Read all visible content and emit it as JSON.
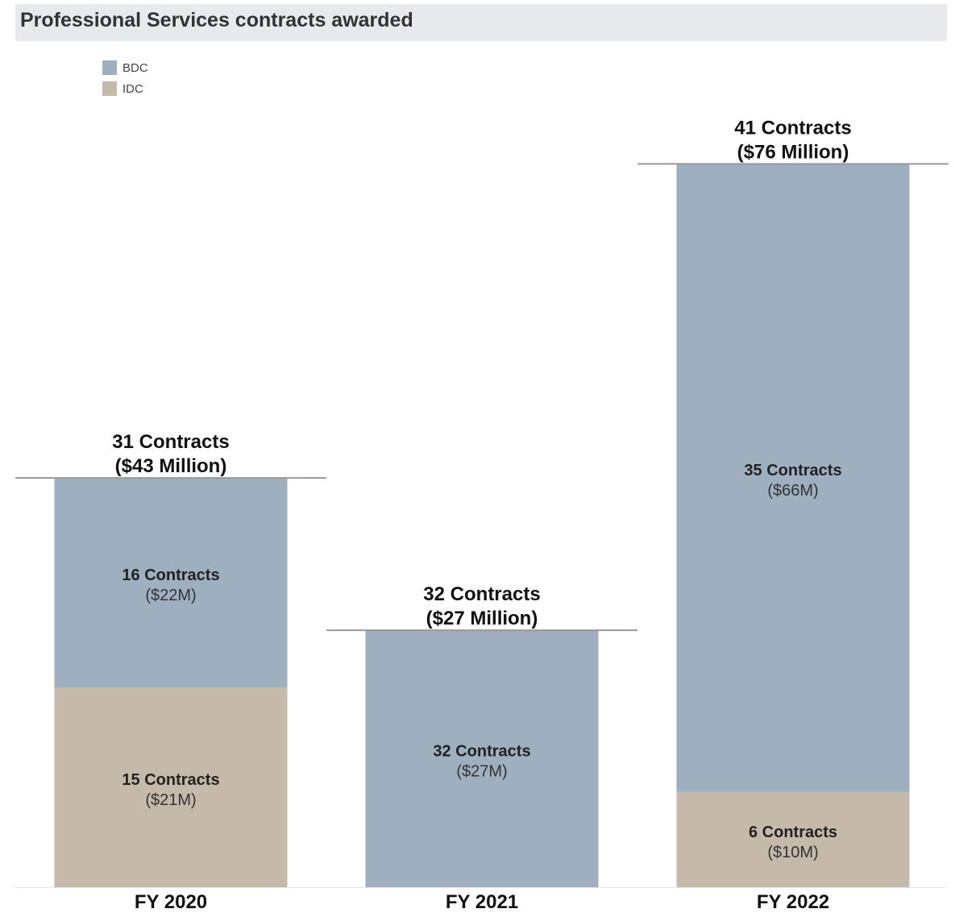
{
  "chart_data": {
    "type": "bar",
    "stacked": true,
    "title": "Professional Services contracts awarded",
    "categories": [
      "FY 2020",
      "FY 2021",
      "FY 2022"
    ],
    "series": [
      {
        "name": "BDC",
        "color": "#9eafbf",
        "values": [
          22,
          27,
          66
        ],
        "contracts": [
          16,
          32,
          35
        ],
        "labels": [
          {
            "contracts": "16 Contracts",
            "amount": "($22M)"
          },
          {
            "contracts": "32 Contracts",
            "amount": "($27M)"
          },
          {
            "contracts": "35 Contracts",
            "amount": "($66M)"
          }
        ]
      },
      {
        "name": "IDC",
        "color": "#c5b9a9",
        "values": [
          21,
          0,
          10
        ],
        "contracts": [
          15,
          0,
          6
        ],
        "labels": [
          {
            "contracts": "15 Contracts",
            "amount": "($21M)"
          },
          null,
          {
            "contracts": "6 Contracts",
            "amount": "($10M)"
          }
        ]
      }
    ],
    "totals": [
      {
        "contracts": "31 Contracts",
        "amount": "($43 Million)"
      },
      {
        "contracts": "32 Contracts",
        "amount": "($27 Million)"
      },
      {
        "contracts": "41 Contracts",
        "amount": "($76 Million)"
      }
    ],
    "ylim": [
      0,
      79
    ],
    "legend_position": "top-left",
    "grid": false
  }
}
